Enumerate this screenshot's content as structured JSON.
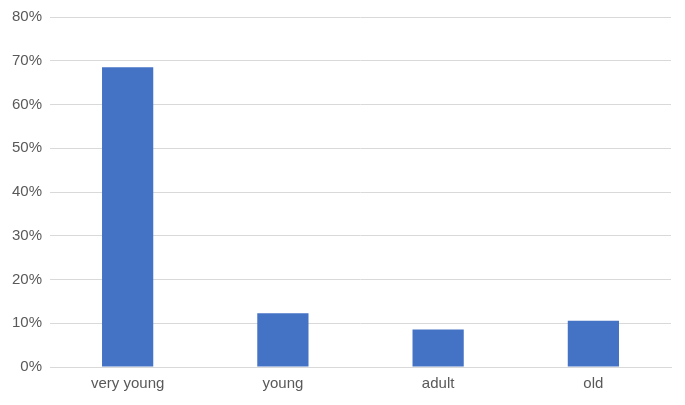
{
  "chart_data": {
    "type": "bar",
    "categories": [
      "very young",
      "young",
      "adult",
      "old"
    ],
    "values": [
      68.5,
      12.3,
      8.6,
      10.6
    ],
    "color": "#4472c4",
    "ylim": [
      0,
      80
    ],
    "yticks": [
      {
        "value": 0,
        "label": "0%"
      },
      {
        "value": 10,
        "label": "10%"
      },
      {
        "value": 20,
        "label": "20%"
      },
      {
        "value": 30,
        "label": "30%"
      },
      {
        "value": 40,
        "label": "40%"
      },
      {
        "value": 50,
        "label": "50%"
      },
      {
        "value": 60,
        "label": "60%"
      },
      {
        "value": 70,
        "label": "70%"
      },
      {
        "value": 80,
        "label": "80%"
      }
    ],
    "grid": true
  }
}
